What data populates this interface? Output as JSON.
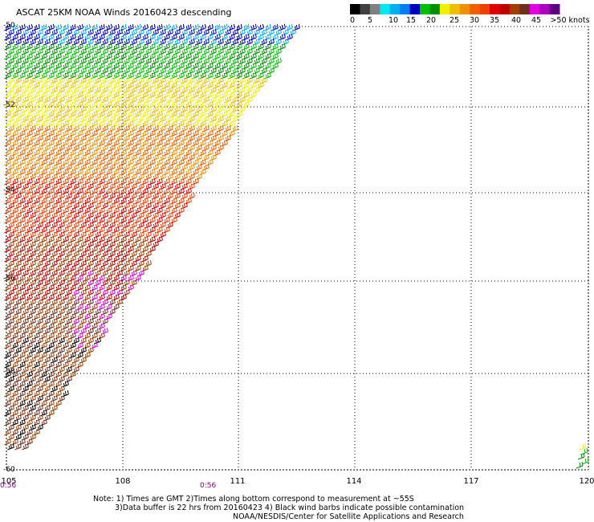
{
  "title": "ASCAT 25KM NOAA Winds 20160423 descending",
  "legend": {
    "colors": [
      "#000000",
      "#404040",
      "#808080",
      "#00e8f0",
      "#00b0f0",
      "#0080f0",
      "#0000c0",
      "#00c000",
      "#009000",
      "#f0f000",
      "#f0c000",
      "#f09000",
      "#f06000",
      "#f04000",
      "#e00000",
      "#c00000",
      "#a04000",
      "#703020",
      "#e000e0",
      "#b000c0",
      "#600080"
    ],
    "labels": [
      "0",
      "5",
      "10",
      "15",
      "20",
      "25",
      "30",
      "35",
      "40",
      "45",
      ">50 knots"
    ]
  },
  "map": {
    "lon_ticks": [
      "105",
      "108",
      "111",
      "114",
      "117",
      "120"
    ],
    "lat_ticks": [
      "-50",
      "-52",
      "-54",
      "-56",
      "-58",
      "-60"
    ],
    "lon_range": [
      105,
      120
    ],
    "lat_range": [
      -50,
      -60
    ],
    "times": [
      "0:56",
      "0:56"
    ]
  },
  "notes": [
    "Note: 1) Times are GMT 2)Times along bottom correspond to measurement at ~55S",
    "3)Data buffer is 22 hrs from 20160423 4) Black wind barbs indicate possible contamination",
    "NOAA/NESDIS/Center for Satellite Applications and Research"
  ]
}
